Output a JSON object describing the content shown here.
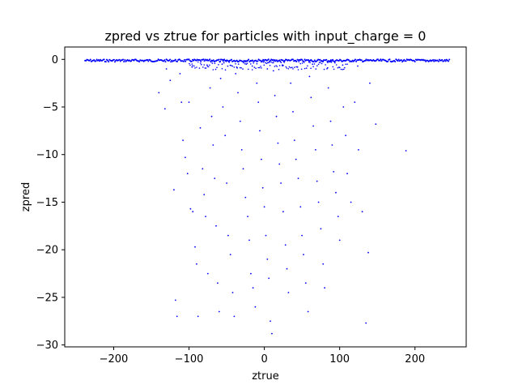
{
  "chart_data": {
    "type": "scatter",
    "title": "zpred vs ztrue for particles with input_charge = 0",
    "xlabel": "ztrue",
    "ylabel": "zpred",
    "xlim": [
      -265,
      268
    ],
    "ylim": [
      -30.2,
      1.3
    ],
    "xticks": [
      -200,
      -100,
      0,
      100,
      200
    ],
    "xtick_labels": [
      "−200",
      "−100",
      "0",
      "100",
      "200"
    ],
    "yticks": [
      0,
      -5,
      -10,
      -15,
      -20,
      -25,
      -30
    ],
    "ytick_labels": [
      "0",
      "−5",
      "−10",
      "−15",
      "−20",
      "−25",
      "−30"
    ],
    "grid": false,
    "marker_color": "#0000ff",
    "series": [
      {
        "x_range": [
          -238,
          246
        ],
        "points": [
          [
            -130,
            -1.0
          ],
          [
            -125,
            -2.2
          ],
          [
            -120,
            -13.7
          ],
          [
            -118,
            -25.3
          ],
          [
            -116,
            -27.0
          ],
          [
            -110,
            -4.5
          ],
          [
            -108,
            -8.5
          ],
          [
            -105,
            -10.3
          ],
          [
            -102,
            -12.0
          ],
          [
            -100,
            -4.5
          ],
          [
            -98,
            -15.7
          ],
          [
            -95,
            -16.0
          ],
          [
            -92,
            -19.7
          ],
          [
            -90,
            -21.5
          ],
          [
            -88,
            -27.0
          ],
          [
            -85,
            -7.2
          ],
          [
            -82,
            -11.5
          ],
          [
            -80,
            -14.2
          ],
          [
            -78,
            -16.5
          ],
          [
            -75,
            -22.5
          ],
          [
            -72,
            -3.0
          ],
          [
            -70,
            -6.0
          ],
          [
            -68,
            -9.0
          ],
          [
            -66,
            -12.5
          ],
          [
            -64,
            -17.5
          ],
          [
            -62,
            -23.5
          ],
          [
            -60,
            -26.5
          ],
          [
            -58,
            -2.0
          ],
          [
            -55,
            -5.0
          ],
          [
            -52,
            -8.0
          ],
          [
            -50,
            -13.0
          ],
          [
            -48,
            -18.5
          ],
          [
            -45,
            -20.5
          ],
          [
            -42,
            -24.5
          ],
          [
            -40,
            -27.0
          ],
          [
            -38,
            -1.5
          ],
          [
            -35,
            -3.5
          ],
          [
            -32,
            -6.5
          ],
          [
            -30,
            -9.5
          ],
          [
            -28,
            -11.5
          ],
          [
            -25,
            -14.5
          ],
          [
            -22,
            -16.5
          ],
          [
            -20,
            -19.0
          ],
          [
            -18,
            -22.5
          ],
          [
            -15,
            -24.0
          ],
          [
            -12,
            -26.0
          ],
          [
            -10,
            -2.5
          ],
          [
            -8,
            -4.5
          ],
          [
            -6,
            -7.5
          ],
          [
            -4,
            -10.5
          ],
          [
            -2,
            -13.5
          ],
          [
            0,
            -15.5
          ],
          [
            2,
            -18.5
          ],
          [
            4,
            -21.0
          ],
          [
            6,
            -23.0
          ],
          [
            8,
            -27.5
          ],
          [
            10,
            -28.8
          ],
          [
            12,
            -1.2
          ],
          [
            14,
            -3.8
          ],
          [
            16,
            -6.0
          ],
          [
            18,
            -8.8
          ],
          [
            20,
            -11.0
          ],
          [
            22,
            -13.0
          ],
          [
            25,
            -16.0
          ],
          [
            28,
            -19.5
          ],
          [
            30,
            -22.0
          ],
          [
            32,
            -24.5
          ],
          [
            35,
            -2.5
          ],
          [
            38,
            -5.5
          ],
          [
            40,
            -8.5
          ],
          [
            42,
            -10.5
          ],
          [
            45,
            -12.5
          ],
          [
            48,
            -15.5
          ],
          [
            50,
            -18.5
          ],
          [
            52,
            -20.5
          ],
          [
            55,
            -23.5
          ],
          [
            58,
            -26.5
          ],
          [
            60,
            -1.8
          ],
          [
            62,
            -4.0
          ],
          [
            65,
            -7.0
          ],
          [
            68,
            -9.5
          ],
          [
            70,
            -12.8
          ],
          [
            72,
            -15.0
          ],
          [
            75,
            -17.8
          ],
          [
            78,
            -21.5
          ],
          [
            80,
            -24.0
          ],
          [
            85,
            -3.0
          ],
          [
            88,
            -6.5
          ],
          [
            90,
            -9.0
          ],
          [
            92,
            -11.8
          ],
          [
            95,
            -14.0
          ],
          [
            98,
            -16.5
          ],
          [
            100,
            -19.0
          ],
          [
            105,
            -5.0
          ],
          [
            108,
            -8.0
          ],
          [
            110,
            -12.0
          ],
          [
            115,
            -15.0
          ],
          [
            120,
            -4.5
          ],
          [
            125,
            -9.5
          ],
          [
            130,
            -16.0
          ],
          [
            135,
            -27.7
          ],
          [
            138,
            -20.3
          ],
          [
            140,
            -2.5
          ],
          [
            148,
            -6.8
          ],
          [
            188,
            -9.6
          ],
          [
            -140,
            -3.5
          ],
          [
            -132,
            -5.2
          ],
          [
            -112,
            -1.5
          ],
          [
            -96,
            -0.8
          ],
          [
            -76,
            -0.6
          ],
          [
            -56,
            -0.5
          ],
          [
            -36,
            -0.9
          ],
          [
            -16,
            -0.7
          ],
          [
            4,
            -1.0
          ],
          [
            24,
            -0.6
          ],
          [
            44,
            -0.8
          ],
          [
            64,
            -0.5
          ],
          [
            84,
            -0.9
          ],
          [
            104,
            -0.6
          ],
          [
            124,
            -0.7
          ]
        ]
      }
    ]
  }
}
